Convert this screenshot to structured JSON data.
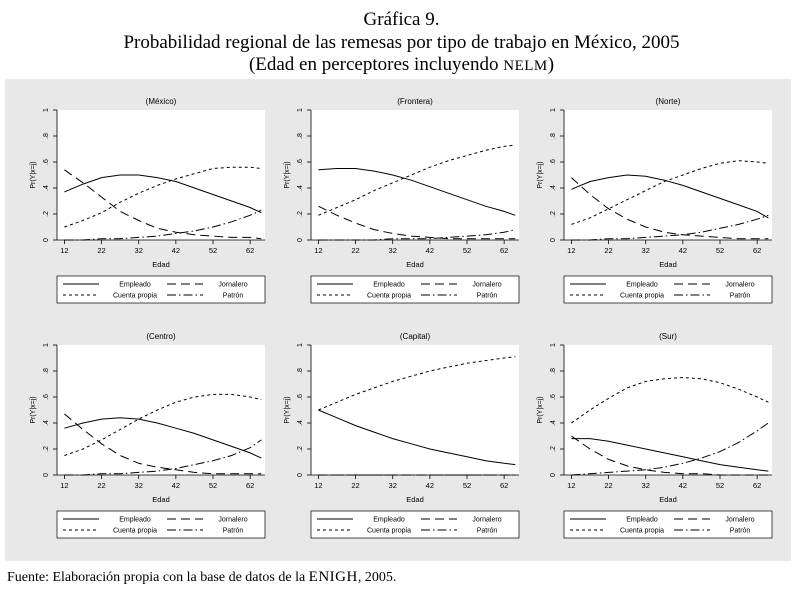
{
  "header": {
    "title_line1": "Gráfica 9.",
    "title_line2": "Probabilidad regional de las remesas por tipo de trabajo en México, 2005",
    "title_line3_pre": "(Edad en perceptores incluyendo ",
    "title_line3_sc": "NELM",
    "title_line3_post": ")"
  },
  "footer": {
    "source_pre": "Fuente: Elaboración propia con la base de datos de la ",
    "source_sc": "ENIGH",
    "source_post": ", 2005."
  },
  "colors": {
    "panel_bg": "#e8e8e8",
    "plot_bg": "#ffffff",
    "line": "#000000"
  },
  "chart_data": [
    {
      "type": "line",
      "title": "(México)",
      "xlabel": "Edad",
      "ylabel": "Pr(Y|x=j)",
      "x": [
        12,
        17,
        22,
        27,
        32,
        37,
        42,
        47,
        52,
        57,
        62,
        65
      ],
      "xticks": [
        "12",
        "22",
        "32",
        "42",
        "52",
        "62"
      ],
      "yticks": [
        "0",
        ".2",
        ".4",
        ".6",
        ".8",
        "1"
      ],
      "ylim": [
        0,
        1
      ],
      "series": [
        {
          "name": "Empleado",
          "dash": "solid",
          "values": [
            0.37,
            0.43,
            0.48,
            0.5,
            0.5,
            0.48,
            0.45,
            0.4,
            0.35,
            0.3,
            0.25,
            0.21
          ]
        },
        {
          "name": "Jornalero",
          "dash": "long",
          "values": [
            0.54,
            0.44,
            0.33,
            0.22,
            0.15,
            0.09,
            0.06,
            0.04,
            0.03,
            0.02,
            0.02,
            0.01
          ]
        },
        {
          "name": "Cuenta propia",
          "dash": "short",
          "values": [
            0.1,
            0.15,
            0.21,
            0.29,
            0.36,
            0.42,
            0.47,
            0.51,
            0.55,
            0.56,
            0.56,
            0.55
          ]
        },
        {
          "name": "Patrón",
          "dash": "dashdot",
          "values": [
            0.0,
            0.0,
            0.01,
            0.01,
            0.02,
            0.03,
            0.05,
            0.07,
            0.1,
            0.14,
            0.19,
            0.23
          ]
        }
      ],
      "legend": [
        "Empleado",
        "Jornalero",
        "Cuenta propia",
        "Patrón"
      ]
    },
    {
      "type": "line",
      "title": "(Frontera)",
      "xlabel": "Edad",
      "ylabel": "Pr(Y|x=j)",
      "x": [
        12,
        17,
        22,
        27,
        32,
        37,
        42,
        47,
        52,
        57,
        62,
        65
      ],
      "xticks": [
        "12",
        "22",
        "32",
        "42",
        "52",
        "62"
      ],
      "yticks": [
        "0",
        ".2",
        ".4",
        ".6",
        ".8",
        "1"
      ],
      "ylim": [
        0,
        1
      ],
      "series": [
        {
          "name": "Empleado",
          "dash": "solid",
          "values": [
            0.54,
            0.55,
            0.55,
            0.53,
            0.5,
            0.46,
            0.41,
            0.36,
            0.31,
            0.26,
            0.22,
            0.19
          ]
        },
        {
          "name": "Jornalero",
          "dash": "long",
          "values": [
            0.26,
            0.19,
            0.13,
            0.08,
            0.05,
            0.03,
            0.02,
            0.01,
            0.01,
            0.01,
            0.01,
            0.01
          ]
        },
        {
          "name": "Cuenta propia",
          "dash": "short",
          "values": [
            0.19,
            0.25,
            0.31,
            0.38,
            0.44,
            0.5,
            0.56,
            0.61,
            0.65,
            0.69,
            0.72,
            0.73
          ]
        },
        {
          "name": "Patrón",
          "dash": "dashdot",
          "values": [
            0.0,
            0.0,
            0.0,
            0.0,
            0.01,
            0.01,
            0.01,
            0.02,
            0.03,
            0.04,
            0.06,
            0.08
          ]
        }
      ],
      "legend": [
        "Empleado",
        "Jornalero",
        "Cuenta propia",
        "Patrón"
      ]
    },
    {
      "type": "line",
      "title": "(Norte)",
      "xlabel": "Edad",
      "ylabel": "Pr(Y|x=j)",
      "x": [
        12,
        17,
        22,
        27,
        32,
        37,
        42,
        47,
        52,
        57,
        62,
        65
      ],
      "xticks": [
        "12",
        "22",
        "32",
        "42",
        "52",
        "62"
      ],
      "yticks": [
        "0",
        ".2",
        ".4",
        ".6",
        ".8",
        "1"
      ],
      "ylim": [
        0,
        1
      ],
      "series": [
        {
          "name": "Empleado",
          "dash": "solid",
          "values": [
            0.39,
            0.45,
            0.48,
            0.5,
            0.49,
            0.46,
            0.42,
            0.37,
            0.32,
            0.27,
            0.22,
            0.17
          ]
        },
        {
          "name": "Jornalero",
          "dash": "long",
          "values": [
            0.48,
            0.35,
            0.24,
            0.16,
            0.1,
            0.06,
            0.04,
            0.03,
            0.02,
            0.01,
            0.01,
            0.01
          ]
        },
        {
          "name": "Cuenta propia",
          "dash": "short",
          "values": [
            0.12,
            0.17,
            0.24,
            0.31,
            0.38,
            0.45,
            0.5,
            0.55,
            0.59,
            0.61,
            0.6,
            0.59
          ]
        },
        {
          "name": "Patrón",
          "dash": "dashdot",
          "values": [
            0.0,
            0.0,
            0.01,
            0.01,
            0.02,
            0.03,
            0.04,
            0.06,
            0.09,
            0.12,
            0.16,
            0.19
          ]
        }
      ],
      "legend": [
        "Empleado",
        "Jornalero",
        "Cuenta propia",
        "Patrón"
      ]
    },
    {
      "type": "line",
      "title": "(Centro)",
      "xlabel": "Edad",
      "ylabel": "Pr(Y|x=j)",
      "x": [
        12,
        17,
        22,
        27,
        32,
        37,
        42,
        47,
        52,
        57,
        62,
        65
      ],
      "xticks": [
        "12",
        "22",
        "32",
        "42",
        "52",
        "62"
      ],
      "yticks": [
        "0",
        ".2",
        ".4",
        ".6",
        ".8",
        "1"
      ],
      "ylim": [
        0,
        1
      ],
      "series": [
        {
          "name": "Empleado",
          "dash": "solid",
          "values": [
            0.36,
            0.4,
            0.43,
            0.44,
            0.43,
            0.4,
            0.36,
            0.32,
            0.27,
            0.22,
            0.17,
            0.13
          ]
        },
        {
          "name": "Jornalero",
          "dash": "long",
          "values": [
            0.47,
            0.35,
            0.24,
            0.15,
            0.09,
            0.06,
            0.04,
            0.02,
            0.01,
            0.01,
            0.01,
            0.01
          ]
        },
        {
          "name": "Cuenta propia",
          "dash": "short",
          "values": [
            0.15,
            0.2,
            0.27,
            0.35,
            0.43,
            0.5,
            0.56,
            0.6,
            0.62,
            0.62,
            0.6,
            0.58
          ]
        },
        {
          "name": "Patrón",
          "dash": "dashdot",
          "values": [
            0.0,
            0.0,
            0.01,
            0.01,
            0.02,
            0.03,
            0.05,
            0.08,
            0.11,
            0.15,
            0.21,
            0.27
          ]
        }
      ],
      "legend": [
        "Empleado",
        "Jornalero",
        "Cuenta propia",
        "Patrón"
      ]
    },
    {
      "type": "line",
      "title": "(Capital)",
      "xlabel": "Edad",
      "ylabel": "Pr(Y|x=j)",
      "x": [
        12,
        17,
        22,
        27,
        32,
        37,
        42,
        47,
        52,
        57,
        62,
        65
      ],
      "xticks": [
        "12",
        "22",
        "32",
        "42",
        "52",
        "62"
      ],
      "yticks": [
        "0",
        ".2",
        ".4",
        ".6",
        ".8",
        "1"
      ],
      "ylim": [
        0,
        1
      ],
      "series": [
        {
          "name": "Empleado",
          "dash": "solid",
          "values": [
            0.5,
            0.44,
            0.38,
            0.33,
            0.28,
            0.24,
            0.2,
            0.17,
            0.14,
            0.11,
            0.09,
            0.08
          ]
        },
        {
          "name": "Jornalero",
          "dash": "long",
          "values": [
            0.0,
            0.0,
            0.0,
            0.0,
            0.0,
            0.0,
            0.0,
            0.0,
            0.0,
            0.0,
            0.0,
            0.0
          ]
        },
        {
          "name": "Cuenta propia",
          "dash": "short",
          "values": [
            0.5,
            0.56,
            0.62,
            0.67,
            0.72,
            0.76,
            0.8,
            0.83,
            0.86,
            0.88,
            0.9,
            0.91
          ]
        },
        {
          "name": "Patrón",
          "dash": "dashdot",
          "values": [
            0.0,
            0.0,
            0.0,
            0.0,
            0.0,
            0.0,
            0.0,
            0.0,
            0.0,
            0.0,
            0.0,
            0.0
          ]
        }
      ],
      "legend": [
        "Empleado",
        "Jornalero",
        "Cuenta propia",
        "Patrón"
      ]
    },
    {
      "type": "line",
      "title": "(Sur)",
      "xlabel": "Edad",
      "ylabel": "Pr(Y|x=j)",
      "x": [
        12,
        17,
        22,
        27,
        32,
        37,
        42,
        47,
        52,
        57,
        62,
        65
      ],
      "xticks": [
        "12",
        "22",
        "32",
        "42",
        "52",
        "62"
      ],
      "yticks": [
        "0",
        ".2",
        ".4",
        ".6",
        ".8",
        "1"
      ],
      "ylim": [
        0,
        1
      ],
      "series": [
        {
          "name": "Empleado",
          "dash": "solid",
          "values": [
            0.28,
            0.28,
            0.26,
            0.23,
            0.2,
            0.17,
            0.14,
            0.11,
            0.08,
            0.06,
            0.04,
            0.03
          ]
        },
        {
          "name": "Jornalero",
          "dash": "long",
          "values": [
            0.3,
            0.2,
            0.12,
            0.07,
            0.04,
            0.02,
            0.01,
            0.01,
            0.0,
            0.0,
            0.0,
            0.0
          ]
        },
        {
          "name": "Cuenta propia",
          "dash": "short",
          "values": [
            0.4,
            0.5,
            0.59,
            0.67,
            0.72,
            0.74,
            0.75,
            0.74,
            0.71,
            0.66,
            0.6,
            0.56
          ]
        },
        {
          "name": "Patrón",
          "dash": "dashdot",
          "values": [
            0.0,
            0.01,
            0.02,
            0.03,
            0.04,
            0.06,
            0.09,
            0.13,
            0.18,
            0.25,
            0.34,
            0.4
          ]
        }
      ],
      "legend": [
        "Empleado",
        "Jornalero",
        "Cuenta propia",
        "Patrón"
      ]
    }
  ]
}
